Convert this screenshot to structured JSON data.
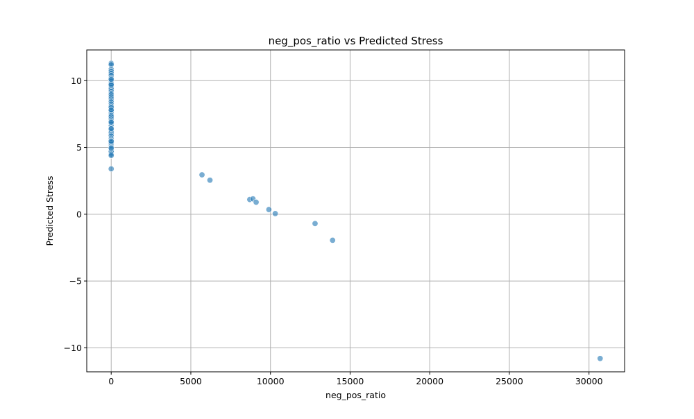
{
  "chart_data": {
    "type": "scatter",
    "title": "neg_pos_ratio vs Predicted Stress",
    "xlabel": "neg_pos_ratio",
    "ylabel": "Predicted Stress",
    "xlim": [
      -1535,
      32235
    ],
    "ylim": [
      -11.8,
      12.3
    ],
    "xticks": [
      0,
      5000,
      10000,
      15000,
      20000,
      25000,
      30000
    ],
    "xtick_labels": [
      "0",
      "5000",
      "10000",
      "15000",
      "20000",
      "25000",
      "30000"
    ],
    "yticks": [
      -10,
      -5,
      0,
      5,
      10
    ],
    "ytick_labels": [
      "−10",
      "−5",
      "0",
      "5",
      "10"
    ],
    "grid": true,
    "legend": "none",
    "marker_color": "#1f77b4",
    "marker_edge_color": "#ffffff",
    "series": [
      {
        "x": [
          0,
          0,
          0,
          0,
          0,
          0,
          0,
          0,
          0,
          0,
          0,
          0,
          0,
          0,
          0,
          0,
          0,
          0,
          0,
          0,
          0,
          0,
          0,
          0,
          0,
          0,
          0,
          0,
          0,
          0,
          0,
          0,
          0,
          0,
          0,
          0,
          0,
          0,
          0,
          0,
          0,
          0,
          0,
          0,
          0,
          0,
          0,
          0,
          0,
          0,
          0,
          0,
          0,
          0,
          0,
          0,
          0,
          0,
          0,
          0,
          5700,
          6200,
          8700,
          8900,
          9100,
          9900,
          10300,
          12800,
          13900,
          30700
        ],
        "y": [
          11.3,
          11.2,
          10.85,
          10.7,
          10.55,
          10.4,
          10.2,
          10.05,
          9.95,
          9.8,
          9.65,
          9.5,
          9.35,
          9.2,
          9.05,
          8.95,
          8.8,
          8.65,
          8.5,
          8.4,
          8.25,
          8.1,
          7.95,
          7.85,
          7.7,
          7.55,
          7.4,
          7.3,
          7.15,
          7.0,
          6.85,
          6.75,
          6.6,
          6.45,
          6.3,
          6.2,
          6.1,
          5.95,
          5.85,
          5.7,
          5.6,
          5.5,
          5.35,
          5.25,
          5.1,
          5.0,
          4.85,
          4.75,
          4.65,
          4.5,
          4.4,
          3.4,
          8.0,
          7.8,
          6.9,
          6.4,
          9.7,
          5.45,
          4.95,
          10.1,
          2.95,
          2.55,
          1.1,
          1.15,
          0.9,
          0.35,
          0.05,
          -0.7,
          -1.95,
          -10.8
        ]
      }
    ]
  }
}
